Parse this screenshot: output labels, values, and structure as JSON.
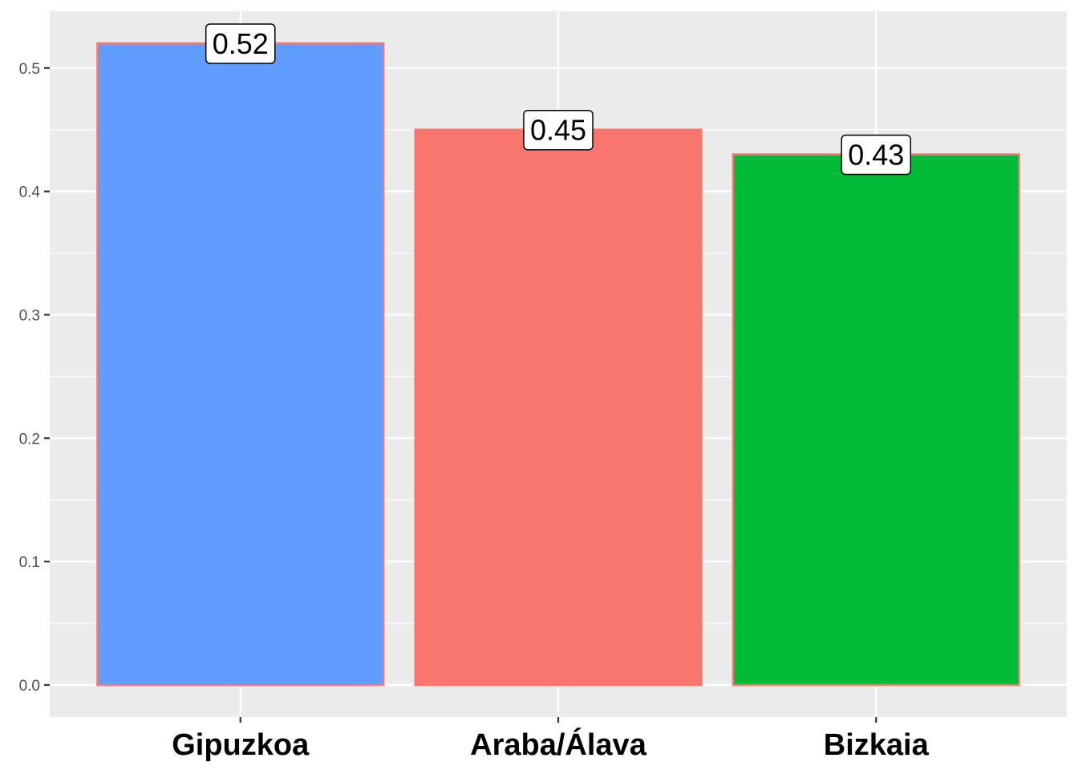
{
  "chart_data": {
    "type": "bar",
    "categories": [
      "Gipuzkoa",
      "Araba/Álava",
      "Bizkaia"
    ],
    "values": [
      0.52,
      0.45,
      0.43
    ],
    "data_labels": [
      "0.52",
      "0.45",
      "0.43"
    ],
    "colors": [
      "#619cff",
      "#f8766d",
      "#00ba38"
    ],
    "outline_color": "#f8766d",
    "title": "",
    "xlabel": "",
    "ylabel": "",
    "ylim": [
      -0.026,
      0.546
    ],
    "yticks": [
      0.0,
      0.1,
      0.2,
      0.3,
      0.4,
      0.5
    ],
    "ytick_labels": [
      "0.0",
      "0.1",
      "0.2",
      "0.3",
      "0.4",
      "0.5"
    ],
    "grid": true,
    "legend": "none",
    "panel_background": "#ebebeb"
  }
}
